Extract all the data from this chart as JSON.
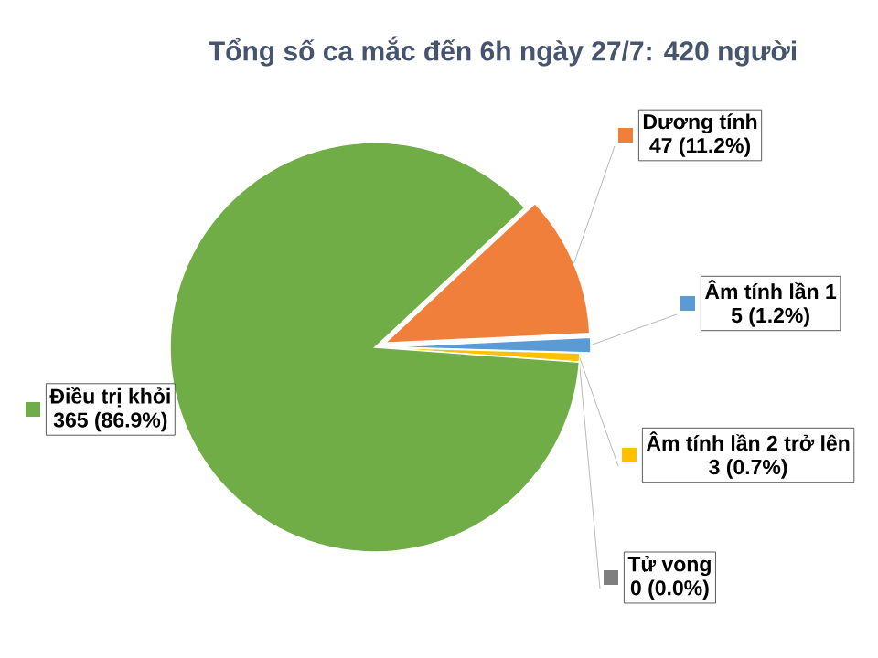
{
  "chart_data": {
    "type": "pie",
    "title": "Tổng số ca mắc đến 6h ngày 27/7: 420 người",
    "categories": [
      "Dương tính",
      "Âm tính lần 1",
      "Âm tính lần 2 trở lên",
      "Tử vong",
      "Điều trị khỏi"
    ],
    "values": [
      47,
      5,
      3,
      0,
      365
    ],
    "legend": "right",
    "colors": [
      "#f07f3c",
      "#5b9bd5",
      "#ffc000",
      "#7f7f7f",
      "#70ad47"
    ],
    "value_labels": [
      "47 (11.2%)",
      "5 (1.2%)",
      "3 (0.7%)",
      "0 (0.0%)",
      "365 (86.9%)"
    ]
  }
}
